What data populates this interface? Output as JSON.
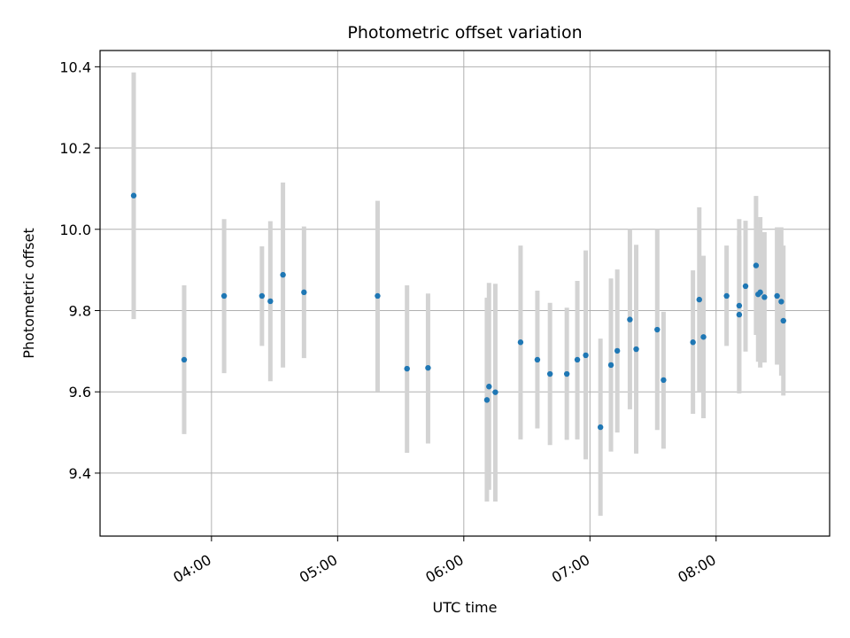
{
  "chart_data": {
    "type": "scatter",
    "title": "Photometric offset variation",
    "xlabel": "UTC time",
    "ylabel": "Photometric offset",
    "x_unit": "UTC time (HH:MM)",
    "xlim": [
      "03:07",
      "08:54"
    ],
    "ylim": [
      9.245,
      10.44
    ],
    "x_ticks": [
      "04:00",
      "05:00",
      "06:00",
      "07:00",
      "08:00"
    ],
    "y_ticks": [
      "9.4",
      "9.6",
      "9.8",
      "10.0",
      "10.2",
      "10.4"
    ],
    "grid": true,
    "legend": "none",
    "colors": {
      "point": "#1f77b4",
      "errorbar": "#d3d3d3",
      "grid": "#b0b0b0",
      "axes": "#000000"
    },
    "series": [
      {
        "points": [
          {
            "x": "03:23",
            "y": 10.083,
            "ylo": 9.779,
            "yhi": 10.386
          },
          {
            "x": "03:47",
            "y": 9.679,
            "ylo": 9.496,
            "yhi": 9.862
          },
          {
            "x": "04:06",
            "y": 9.836,
            "ylo": 9.646,
            "yhi": 10.025
          },
          {
            "x": "04:24",
            "y": 9.836,
            "ylo": 9.713,
            "yhi": 9.958
          },
          {
            "x": "04:28",
            "y": 9.823,
            "ylo": 9.626,
            "yhi": 10.02
          },
          {
            "x": "04:34",
            "y": 9.888,
            "ylo": 9.66,
            "yhi": 10.115
          },
          {
            "x": "04:44",
            "y": 9.845,
            "ylo": 9.683,
            "yhi": 10.007
          },
          {
            "x": "05:19",
            "y": 9.836,
            "ylo": 9.601,
            "yhi": 10.07
          },
          {
            "x": "05:33",
            "y": 9.657,
            "ylo": 9.45,
            "yhi": 9.862
          },
          {
            "x": "05:43",
            "y": 9.659,
            "ylo": 9.473,
            "yhi": 9.842
          },
          {
            "x": "06:11",
            "y": 9.58,
            "ylo": 9.33,
            "yhi": 9.832
          },
          {
            "x": "06:12",
            "y": 9.613,
            "ylo": 9.359,
            "yhi": 9.868
          },
          {
            "x": "06:15",
            "y": 9.599,
            "ylo": 9.33,
            "yhi": 9.866
          },
          {
            "x": "06:27",
            "y": 9.722,
            "ylo": 9.483,
            "yhi": 9.96
          },
          {
            "x": "06:35",
            "y": 9.679,
            "ylo": 9.51,
            "yhi": 9.849
          },
          {
            "x": "06:41",
            "y": 9.644,
            "ylo": 9.469,
            "yhi": 9.819
          },
          {
            "x": "06:49",
            "y": 9.644,
            "ylo": 9.482,
            "yhi": 9.807
          },
          {
            "x": "06:54",
            "y": 9.679,
            "ylo": 9.483,
            "yhi": 9.873
          },
          {
            "x": "06:58",
            "y": 9.69,
            "ylo": 9.434,
            "yhi": 9.948
          },
          {
            "x": "07:05",
            "y": 9.513,
            "ylo": 9.295,
            "yhi": 9.731
          },
          {
            "x": "07:10",
            "y": 9.666,
            "ylo": 9.453,
            "yhi": 9.879
          },
          {
            "x": "07:13",
            "y": 9.701,
            "ylo": 9.5,
            "yhi": 9.901
          },
          {
            "x": "07:19",
            "y": 9.778,
            "ylo": 9.557,
            "yhi": 10.0
          },
          {
            "x": "07:22",
            "y": 9.705,
            "ylo": 9.448,
            "yhi": 9.962
          },
          {
            "x": "07:32",
            "y": 9.753,
            "ylo": 9.506,
            "yhi": 10.0
          },
          {
            "x": "07:35",
            "y": 9.629,
            "ylo": 9.46,
            "yhi": 9.797
          },
          {
            "x": "07:49",
            "y": 9.722,
            "ylo": 9.546,
            "yhi": 9.899
          },
          {
            "x": "07:52",
            "y": 9.827,
            "ylo": 9.6,
            "yhi": 10.054
          },
          {
            "x": "07:54",
            "y": 9.735,
            "ylo": 9.535,
            "yhi": 9.935
          },
          {
            "x": "08:05",
            "y": 9.836,
            "ylo": 9.713,
            "yhi": 9.96
          },
          {
            "x": "08:11",
            "y": 9.812,
            "ylo": 9.6,
            "yhi": 10.025
          },
          {
            "x": "08:11",
            "y": 9.79,
            "ylo": 9.596,
            "yhi": 9.984
          },
          {
            "x": "08:14",
            "y": 9.86,
            "ylo": 9.699,
            "yhi": 10.021
          },
          {
            "x": "08:19",
            "y": 9.911,
            "ylo": 9.74,
            "yhi": 10.082
          },
          {
            "x": "08:20",
            "y": 9.84,
            "ylo": 9.674,
            "yhi": 10.005
          },
          {
            "x": "08:21",
            "y": 9.845,
            "ylo": 9.66,
            "yhi": 10.03
          },
          {
            "x": "08:23",
            "y": 9.833,
            "ylo": 9.672,
            "yhi": 9.993
          },
          {
            "x": "08:29",
            "y": 9.836,
            "ylo": 9.667,
            "yhi": 10.005
          },
          {
            "x": "08:31",
            "y": 9.822,
            "ylo": 9.64,
            "yhi": 10.005
          },
          {
            "x": "08:32",
            "y": 9.775,
            "ylo": 9.591,
            "yhi": 9.96
          }
        ]
      }
    ]
  }
}
